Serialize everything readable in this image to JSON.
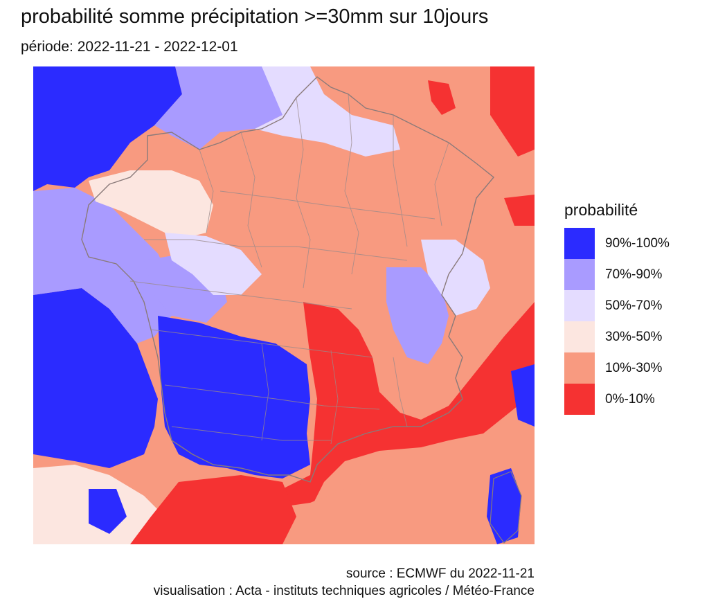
{
  "title": "probabilité somme précipitation >=30mm sur 10jours",
  "subtitle": "période: 2022-11-21 - 2022-12-01",
  "legend": {
    "title": "probabilité",
    "classes": [
      {
        "label": "90%-100%",
        "color": "#2b2bff"
      },
      {
        "label": "70%-90%",
        "color": "#a99bff"
      },
      {
        "label": "50%-70%",
        "color": "#e4dcff"
      },
      {
        "label": "30%-50%",
        "color": "#fce6e0"
      },
      {
        "label": "10%-30%",
        "color": "#f89a80"
      },
      {
        "label": "0%-10%",
        "color": "#f53232"
      }
    ]
  },
  "caption": {
    "source": "source : ECMWF du 2022-11-21",
    "visualisation": "visualisation : Acta - instituts techniques agricoles / Météo-France"
  },
  "map": {
    "background_color": "#f0f0f0",
    "boundary_color": "#8a7a7a"
  }
}
